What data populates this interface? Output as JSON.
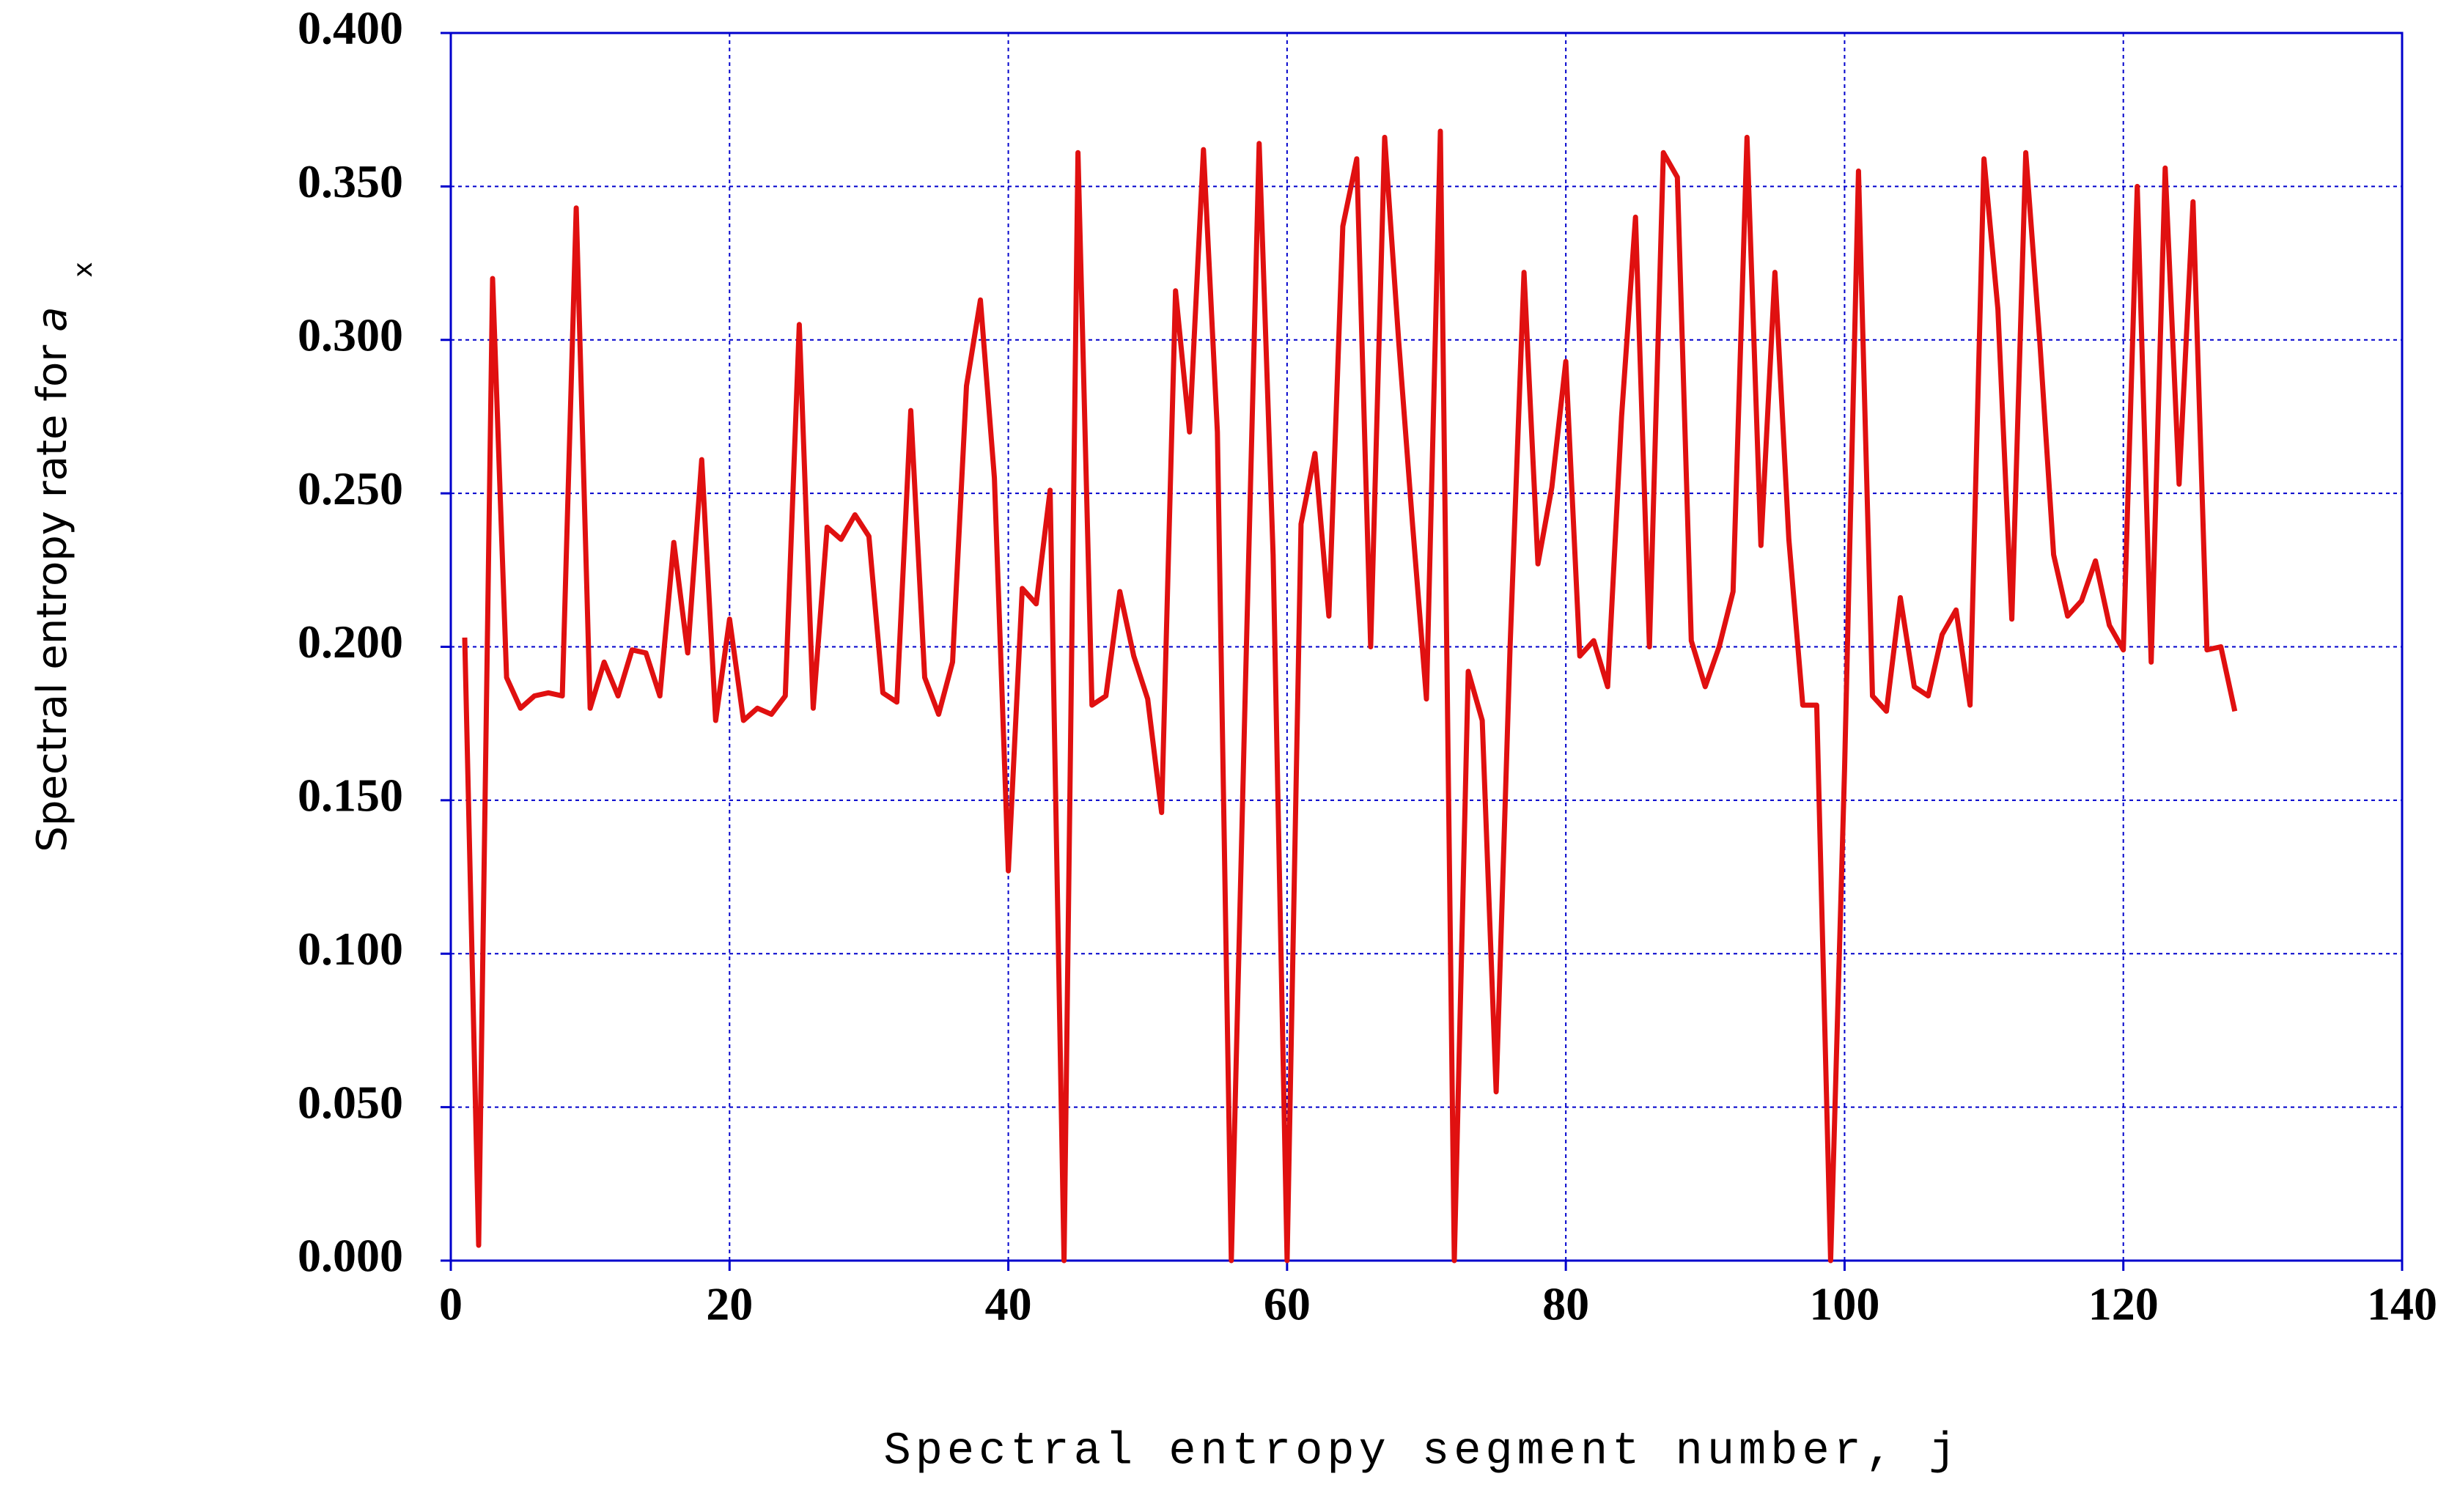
{
  "chart_data": {
    "type": "line",
    "xlabel": "Spectral entropy segment number, j",
    "ylabel": "Spectral entropy rate for",
    "ylabel_symbol": "a",
    "ylabel_subscript": "x",
    "x": [
      1,
      2,
      3,
      4,
      5,
      6,
      7,
      8,
      9,
      10,
      11,
      12,
      13,
      14,
      15,
      16,
      17,
      18,
      19,
      20,
      21,
      22,
      23,
      24,
      25,
      26,
      27,
      28,
      29,
      30,
      31,
      32,
      33,
      34,
      35,
      36,
      37,
      38,
      39,
      40,
      41,
      42,
      43,
      44,
      45,
      46,
      47,
      48,
      49,
      50,
      51,
      52,
      53,
      54,
      55,
      56,
      57,
      58,
      59,
      60,
      61,
      62,
      63,
      64,
      65,
      66,
      67,
      68,
      69,
      70,
      71,
      72,
      73,
      74,
      75,
      76,
      77,
      78,
      79,
      80,
      81,
      82,
      83,
      84,
      85,
      86,
      87,
      88,
      89,
      90,
      91,
      92,
      93,
      94,
      95,
      96,
      97,
      98,
      99,
      100,
      101,
      102,
      103,
      104,
      105,
      106,
      107,
      108,
      109,
      110,
      111,
      112,
      113,
      114,
      115,
      116,
      117,
      118,
      119,
      120,
      121,
      122,
      123,
      124,
      125,
      126,
      127,
      128
    ],
    "series": [
      {
        "color": "#e01010",
        "values": [
          0.203,
          0.005,
          0.32,
          0.19,
          0.18,
          0.184,
          0.185,
          0.184,
          0.343,
          0.18,
          0.195,
          0.184,
          0.199,
          0.198,
          0.184,
          0.234,
          0.198,
          0.261,
          0.176,
          0.209,
          0.176,
          0.18,
          0.178,
          0.184,
          0.305,
          0.18,
          0.239,
          0.235,
          0.243,
          0.236,
          0.185,
          0.182,
          0.277,
          0.19,
          0.178,
          0.195,
          0.285,
          0.313,
          0.255,
          0.127,
          0.219,
          0.214,
          0.251,
          0.0,
          0.361,
          0.181,
          0.184,
          0.218,
          0.197,
          0.183,
          0.146,
          0.316,
          0.27,
          0.362,
          0.27,
          0.0,
          0.185,
          0.364,
          0.23,
          0.0,
          0.24,
          0.263,
          0.21,
          0.337,
          0.359,
          0.2,
          0.366,
          0.3,
          0.24,
          0.183,
          0.368,
          0.0,
          0.192,
          0.176,
          0.055,
          0.2,
          0.322,
          0.227,
          0.252,
          0.293,
          0.197,
          0.202,
          0.187,
          0.275,
          0.34,
          0.2,
          0.361,
          0.353,
          0.202,
          0.187,
          0.2,
          0.218,
          0.366,
          0.233,
          0.322,
          0.235,
          0.181,
          0.181,
          0.0,
          0.16,
          0.355,
          0.184,
          0.179,
          0.216,
          0.187,
          0.184,
          0.204,
          0.212,
          0.181,
          0.359,
          0.31,
          0.209,
          0.361,
          0.3,
          0.23,
          0.21,
          0.215,
          0.228,
          0.207,
          0.199,
          0.35,
          0.195,
          0.356,
          0.253,
          0.345,
          0.199,
          0.2,
          0.179
        ]
      }
    ],
    "xlim": [
      0,
      140
    ],
    "xticks": [
      0,
      20,
      40,
      60,
      80,
      100,
      120,
      140
    ],
    "ylim": [
      0,
      0.4
    ],
    "yticks": [
      {
        "value": 0,
        "label": "0.000"
      },
      {
        "value": 0.05,
        "label": "0.050"
      },
      {
        "value": 0.1,
        "label": "0.100"
      },
      {
        "value": 0.15,
        "label": "0.150"
      },
      {
        "value": 0.2,
        "label": "0.200"
      },
      {
        "value": 0.25,
        "label": "0.250"
      },
      {
        "value": 0.3,
        "label": "0.300"
      },
      {
        "value": 0.35,
        "label": "0.350"
      },
      {
        "value": 0.4,
        "label": "0.400"
      }
    ],
    "grid": true,
    "grid_color": "#0000cc"
  }
}
